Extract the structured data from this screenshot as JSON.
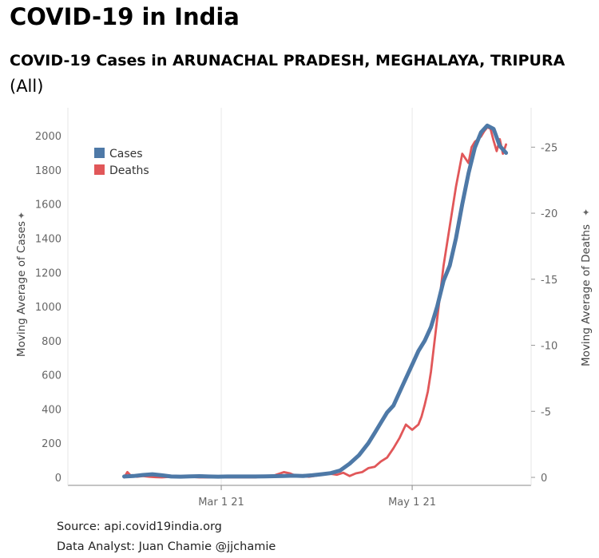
{
  "page": {
    "title": "COVID-19 in India",
    "subtitle": "COVID-19 Cases in ARUNACHAL PRADESH, MEGHALAYA, TRIPURA",
    "filter_label": "(All)",
    "source": "Source: api.covid19india.org",
    "analyst": "Data Analyst:  Juan Chamie @jjchamie"
  },
  "chart_data": {
    "type": "line",
    "title": "COVID-19 Cases in ARUNACHAL PRADESH, MEGHALAYA, TRIPURA",
    "xlabel": "",
    "ylabel": "Moving Average of Cases",
    "y2label": "Moving Average of Deaths",
    "xticks": [
      {
        "day": 31,
        "label": "Mar 1 21"
      },
      {
        "day": 92,
        "label": "May 1 21"
      }
    ],
    "yticks": [
      0,
      200,
      400,
      600,
      800,
      1000,
      1200,
      1400,
      1600,
      1800,
      2000
    ],
    "y2ticks": [
      {
        "value": 0,
        "label": "0"
      },
      {
        "value": 5,
        "label": "-5"
      },
      {
        "value": 10,
        "label": "-10"
      },
      {
        "value": 15,
        "label": "-15"
      },
      {
        "value": 20,
        "label": "-20"
      },
      {
        "value": 25,
        "label": "-25"
      }
    ],
    "xlim": [
      -18,
      130
    ],
    "ylim": [
      0,
      2150
    ],
    "y2lim": [
      0,
      27.8
    ],
    "legend": [
      {
        "name": "Cases",
        "color": "#4e79a7"
      },
      {
        "name": "Deaths",
        "color": "#e15759"
      }
    ],
    "series": [
      {
        "name": "Cases",
        "axis": "left",
        "color": "#4e79a7",
        "x": [
          0,
          3,
          6,
          9,
          12,
          15,
          18,
          21,
          24,
          27,
          30,
          33,
          36,
          39,
          42,
          45,
          48,
          51,
          54,
          57,
          60,
          63,
          66,
          69,
          72,
          75,
          78,
          80,
          82,
          84,
          86,
          88,
          90,
          92,
          94,
          96,
          98,
          100,
          102,
          104,
          106,
          108,
          110,
          112,
          114,
          116,
          118,
          119,
          120,
          121,
          122
        ],
        "y": [
          5,
          8,
          14,
          18,
          12,
          5,
          4,
          6,
          7,
          5,
          4,
          5,
          5,
          5,
          5,
          6,
          7,
          8,
          10,
          8,
          12,
          18,
          25,
          40,
          80,
          130,
          200,
          260,
          320,
          380,
          420,
          500,
          580,
          660,
          740,
          800,
          880,
          1000,
          1150,
          1240,
          1400,
          1600,
          1780,
          1930,
          2020,
          2060,
          2040,
          1990,
          1940,
          1920,
          1900
        ]
      },
      {
        "name": "Deaths",
        "axis": "right",
        "color": "#e15759",
        "x": [
          0,
          1,
          2,
          4,
          6,
          8,
          10,
          12,
          15,
          18,
          21,
          24,
          27,
          30,
          33,
          36,
          39,
          42,
          45,
          48,
          51,
          53,
          55,
          57,
          59,
          62,
          65,
          68,
          70,
          72,
          74,
          76,
          78,
          80,
          82,
          84,
          86,
          88,
          90,
          92,
          93,
          94,
          95,
          96,
          97,
          98,
          100,
          102,
          104,
          106,
          108,
          110,
          111,
          112,
          114,
          115,
          116,
          117,
          118,
          119,
          120,
          121,
          122
        ],
        "y": [
          0,
          0.4,
          0.15,
          0.05,
          0.1,
          0.05,
          0.02,
          0,
          0.05,
          0,
          0.05,
          0,
          0,
          0.05,
          0,
          0,
          0,
          0,
          0.1,
          0.15,
          0.4,
          0.3,
          0.1,
          0.1,
          0.05,
          0.15,
          0.3,
          0.2,
          0.35,
          0.1,
          0.3,
          0.4,
          0.7,
          0.8,
          1.2,
          1.5,
          2.2,
          3.0,
          4.0,
          3.6,
          3.8,
          4.0,
          4.6,
          5.5,
          6.5,
          8.0,
          12.0,
          16.0,
          19.0,
          22.0,
          24.5,
          23.8,
          25.0,
          25.4,
          25.8,
          26.2,
          26.5,
          26.4,
          25.5,
          24.7,
          25.6,
          24.5,
          25.2
        ]
      }
    ]
  }
}
